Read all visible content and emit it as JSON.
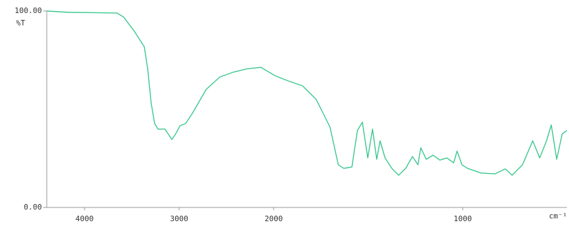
{
  "chart_data": {
    "type": "line",
    "y_label": "%T",
    "x_label": "cm⁻¹",
    "x": [
      4400,
      4167,
      3659,
      3586,
      3477,
      3368,
      3332,
      3295,
      3259,
      3223,
      3150,
      3077,
      3041,
      2990,
      2932,
      2859,
      2714,
      2569,
      2423,
      2278,
      2133,
      1993,
      1920,
      1847,
      1775,
      1702,
      1658,
      1629,
      1586,
      1557,
      1531,
      1502,
      1477,
      1455,
      1437,
      1411,
      1375,
      1339,
      1302,
      1266,
      1237,
      1222,
      1193,
      1157,
      1121,
      1084,
      1048,
      1030,
      1004,
      975,
      902,
      830,
      775,
      739,
      684,
      630,
      593,
      557,
      532,
      503,
      474,
      449
    ],
    "values": [
      100,
      99.3,
      99,
      96.9,
      89.9,
      81.8,
      70.6,
      53.1,
      42.7,
      39.9,
      39.9,
      34.6,
      37.1,
      41.6,
      42.7,
      47.9,
      60.1,
      66.4,
      68.9,
      70.6,
      71.3,
      67.1,
      64.3,
      61.9,
      55,
      40.9,
      21.7,
      19.9,
      20.6,
      39.2,
      43.4,
      25.2,
      39.9,
      24.5,
      33.9,
      25.2,
      19.9,
      16.4,
      19.9,
      25.9,
      21.7,
      30.4,
      24.5,
      26.6,
      24.1,
      25.2,
      22.7,
      28.7,
      21.7,
      19.9,
      17.5,
      17.1,
      19.6,
      16.4,
      21.7,
      33.9,
      25.2,
      33.9,
      42,
      24.5,
      37.4,
      39.2
    ],
    "color": "#3cc88f",
    "xlim": [
      4400,
      449
    ],
    "xticks": [
      4000,
      3000,
      2000,
      1000
    ],
    "x_break": 2000,
    "x_break_factor": 2,
    "ylim": [
      0,
      100
    ],
    "yticks": [
      {
        "value": 0,
        "label": "0.00"
      },
      {
        "value": 100,
        "label": "100.00"
      }
    ]
  }
}
